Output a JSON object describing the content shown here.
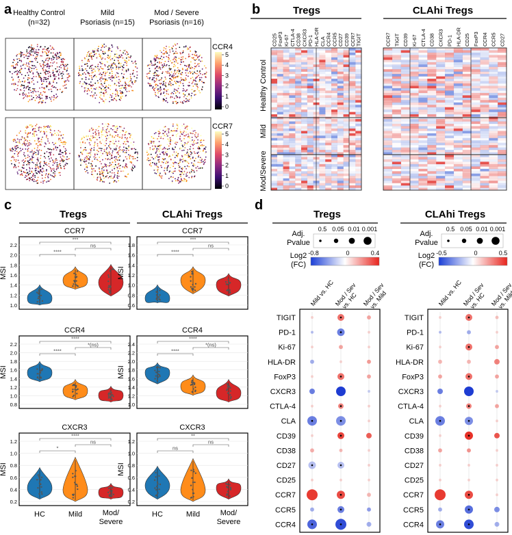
{
  "panels": {
    "a": "a",
    "b": "b",
    "c": "c",
    "d": "d"
  },
  "panel_a": {
    "columns": [
      "Healthy Control\n(n=32)",
      "Mild\nPsoriasis (n=15)",
      "Mod / Severe\nPsoriasis (n=16)"
    ],
    "col_line1": [
      "Healthy Control",
      "Mild",
      "Mod / Severe"
    ],
    "col_line2": [
      "(n=32)",
      "Psoriasis (n=15)",
      "Psoriasis (n=16)"
    ],
    "rows": [
      "CCR4",
      "CCR7"
    ],
    "colorbar_ticks": [
      "5",
      "4",
      "3",
      "2",
      "1",
      "0"
    ]
  },
  "panel_b": {
    "left_title": "Tregs",
    "right_title": "CLAhi Tregs",
    "left_markers": [
      "CD25",
      "FoxP3",
      "Ki-67",
      "CTLA-4",
      "CD38",
      "CXCR3",
      "PD-1",
      "HLA-DR",
      "CLA",
      "CCR4",
      "CCR5",
      "CD27",
      "CD39",
      "CCR7",
      "TIGIT"
    ],
    "right_markers": [
      "CCR7",
      "TIGIT",
      "CD39",
      "Ki-67",
      "CTLA-4",
      "CD38",
      "CXCR3",
      "PD-1",
      "HLA-DR",
      "CD25",
      "FoxP3",
      "CCR4",
      "CCR5",
      "CD27"
    ],
    "groups": [
      "Healthy Control",
      "Mild",
      "Mod/Severe"
    ]
  },
  "panel_c": {
    "col_titles": [
      "Tregs",
      "CLAhi Tregs"
    ],
    "ylabel": "MSI",
    "x_ticks": [
      "HC",
      "Mild",
      "Mod/\nSevere"
    ],
    "x_tick1": "HC",
    "x_tick2": "Mild",
    "x_tick3a": "Mod/",
    "x_tick3b": "Severe",
    "plots": [
      {
        "title": "CCR7",
        "yticks": [
          "2.2",
          "2.0",
          "1.8",
          "1.6",
          "1.4",
          "1.2",
          "1.0"
        ],
        "sig": [
          "***",
          "****",
          "ns"
        ]
      },
      {
        "title": "CCR7",
        "yticks": [
          "1.8",
          "1.6",
          "1.4",
          "1.2",
          "1.0",
          "0.8",
          "0.6"
        ],
        "sig": [
          "***",
          "****",
          "ns"
        ]
      },
      {
        "title": "CCR4",
        "yticks": [
          "2.2",
          "2.0",
          "1.8",
          "1.6",
          "1.4",
          "1.2",
          "1.0",
          "0.8"
        ],
        "sig": [
          "****",
          "****",
          "*(ns)"
        ]
      },
      {
        "title": "CCR4",
        "yticks": [
          "2.4",
          "2.2",
          "2.0",
          "1.8",
          "1.6",
          "1.4",
          "1.2",
          "1.0"
        ],
        "sig": [
          "****",
          "****",
          "*(ns)"
        ]
      },
      {
        "title": "CXCR3",
        "yticks": [
          "1.2",
          "1.0",
          "0.8",
          "0.6",
          "0.4",
          "0.2"
        ],
        "sig": [
          "****",
          "*",
          "ns"
        ]
      },
      {
        "title": "CXCR3",
        "yticks": [
          "1.2",
          "1.0",
          "0.8",
          "0.6",
          "0.4",
          "0.2"
        ],
        "sig": [
          "**",
          "ns",
          "ns"
        ]
      }
    ]
  },
  "panel_d": {
    "titles": [
      "Tregs",
      "CLAhi Tregs"
    ],
    "pvalue_label1": "Adj.",
    "pvalue_label2": "Pvalue",
    "pvalue_ticks": [
      "0.5",
      "0.05",
      "0.01",
      "0.001"
    ],
    "fc_label1": "Log2",
    "fc_label2": "(FC)",
    "left_fc_ticks": [
      "-0.8",
      "0",
      "0.4"
    ],
    "right_fc_ticks": [
      "-0.5",
      "0",
      "0.5"
    ],
    "comparisons": [
      "Mild vs. HC",
      "Mod / Sev\nvs. HC",
      "Mod / Sev\nvs. Mild"
    ],
    "comp1": "Mild vs. HC",
    "comp2a": "Mod / Sev",
    "comp2b": "vs. HC",
    "comp3a": "Mod / Sev",
    "comp3b": "vs. Mild",
    "markers": [
      "TIGIT",
      "PD-1",
      "Ki-67",
      "HLA-DR",
      "FoxP3",
      "CXCR3",
      "CTLA-4",
      "CLA",
      "CD39",
      "CD38",
      "CD27",
      "CD25",
      "CCR7",
      "CCR5",
      "CCR4"
    ]
  }
}
